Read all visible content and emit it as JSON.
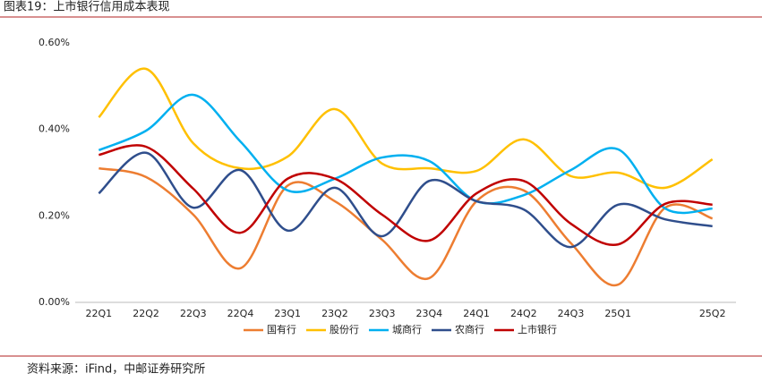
{
  "chart_data": {
    "type": "line",
    "title": "图表19：上市银行信用成本表现",
    "source": "资料来源：iFind，中邮证券研究所",
    "categories": [
      "22Q1",
      "22Q2",
      "22Q3",
      "22Q4",
      "23Q1",
      "23Q2",
      "23Q3",
      "23Q4",
      "24Q1",
      "24Q2",
      "24Q3",
      "25Q1",
      null,
      "25Q2"
    ],
    "ylim": [
      0,
      0.6
    ],
    "yticks": [
      {
        "value": 0,
        "label": "0.00%"
      },
      {
        "value": 0.2,
        "label": "0.20%"
      },
      {
        "value": 0.4,
        "label": "0.40%"
      },
      {
        "value": 0.6,
        "label": "0.60%"
      }
    ],
    "grid": false,
    "legend": "bottom",
    "series": [
      {
        "name": "国有行",
        "color": "#ED7D31",
        "values": [
          0.31,
          0.29,
          0.203,
          0.079,
          0.27,
          0.234,
          0.145,
          0.056,
          0.234,
          0.259,
          0.137,
          0.041,
          0.219,
          0.194
        ]
      },
      {
        "name": "股份行",
        "color": "#FFC000",
        "values": [
          0.428,
          0.54,
          0.368,
          0.31,
          0.337,
          0.447,
          0.321,
          0.31,
          0.304,
          0.377,
          0.292,
          0.3,
          0.265,
          0.331
        ]
      },
      {
        "name": "城商行",
        "color": "#00B0F0",
        "values": [
          0.352,
          0.397,
          0.48,
          0.372,
          0.259,
          0.286,
          0.335,
          0.327,
          0.234,
          0.248,
          0.306,
          0.354,
          0.217,
          0.217
        ]
      },
      {
        "name": "农商行",
        "color": "#2F4E8C",
        "values": [
          0.252,
          0.346,
          0.219,
          0.306,
          0.166,
          0.265,
          0.153,
          0.281,
          0.234,
          0.215,
          0.128,
          0.226,
          0.192,
          0.176
        ]
      },
      {
        "name": "上市银行",
        "color": "#C00000",
        "values": [
          0.341,
          0.36,
          0.263,
          0.161,
          0.286,
          0.286,
          0.203,
          0.143,
          0.252,
          0.281,
          0.182,
          0.134,
          0.228,
          0.226
        ]
      }
    ]
  }
}
